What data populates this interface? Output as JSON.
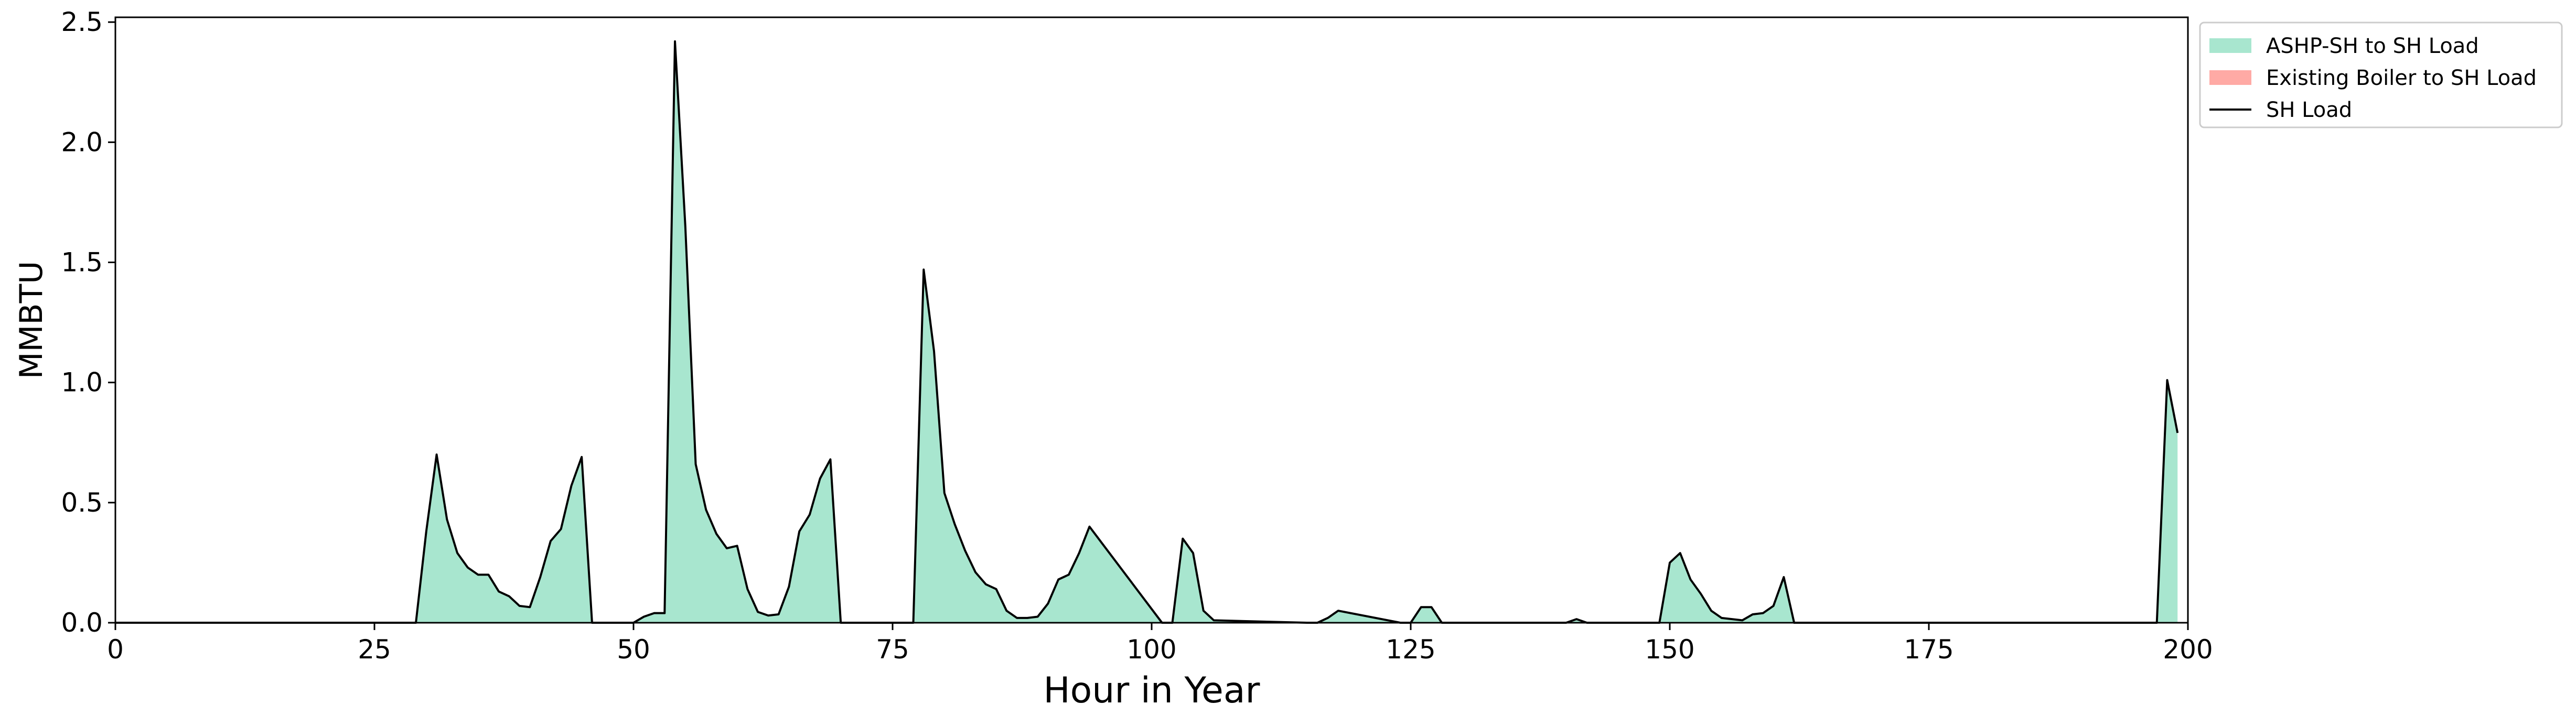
{
  "chart_data": {
    "type": "area",
    "xlabel": "Hour in Year",
    "ylabel": "MMBTU",
    "xlim": [
      0,
      200
    ],
    "ylim": [
      0,
      2.52
    ],
    "xticks": [
      0,
      25,
      50,
      75,
      100,
      125,
      150,
      175,
      200
    ],
    "xtick_labels": [
      "0",
      "25",
      "50",
      "75",
      "100",
      "125",
      "150",
      "175",
      "200"
    ],
    "yticks": [
      0,
      0.5,
      1.0,
      1.5,
      2.0,
      2.5
    ],
    "ytick_labels": [
      "0.0",
      "0.5",
      "1.0",
      "1.5",
      "2.0",
      "2.5"
    ],
    "grid": false,
    "legend_position": "outside upper right",
    "x": [
      0,
      29,
      30,
      31,
      32,
      33,
      34,
      35,
      36,
      37,
      38,
      39,
      40,
      41,
      42,
      43,
      44,
      45,
      46,
      47,
      50,
      51,
      52,
      53,
      54,
      55,
      56,
      57,
      58,
      59,
      60,
      61,
      62,
      63,
      64,
      65,
      66,
      67,
      68,
      69,
      70,
      71,
      77,
      78,
      79,
      80,
      81,
      82,
      83,
      84,
      85,
      86,
      87,
      88,
      89,
      90,
      91,
      92,
      93,
      94,
      101,
      102,
      103,
      104,
      105,
      106,
      115,
      116,
      117,
      118,
      124,
      125,
      126,
      127,
      128,
      140,
      141,
      142,
      149,
      150,
      151,
      152,
      153,
      154,
      155,
      156,
      157,
      158,
      159,
      160,
      161,
      162,
      197,
      198,
      199
    ],
    "series": [
      {
        "name": "ASHP-SH to SH Load",
        "color": "#a8e6cf",
        "kind": "fill",
        "values": [
          0,
          0,
          0.38,
          0.7,
          0.43,
          0.29,
          0.23,
          0.2,
          0.2,
          0.13,
          0.11,
          0.07,
          0.065,
          0.19,
          0.34,
          0.39,
          0.57,
          0.69,
          0,
          0,
          0,
          0.025,
          0.04,
          0.04,
          2.42,
          1.65,
          0.66,
          0.47,
          0.37,
          0.31,
          0.32,
          0.14,
          0.045,
          0.03,
          0.035,
          0.15,
          0.38,
          0.45,
          0.6,
          0.68,
          0,
          0,
          0,
          1.47,
          1.13,
          0.54,
          0.41,
          0.3,
          0.21,
          0.16,
          0.14,
          0.05,
          0.02,
          0.02,
          0.025,
          0.08,
          0.18,
          0.2,
          0.29,
          0.4,
          0,
          0,
          0.35,
          0.29,
          0.05,
          0.01,
          0,
          0,
          0.02,
          0.05,
          0,
          0,
          0.065,
          0.065,
          0,
          0,
          0.015,
          0,
          0,
          0.25,
          0.29,
          0.18,
          0.12,
          0.05,
          0.02,
          0.015,
          0.01,
          0.035,
          0.04,
          0.07,
          0.19,
          0,
          0,
          1.01,
          0.79
        ]
      },
      {
        "name": "Existing Boiler to SH Load",
        "color": "#ffaaa5",
        "kind": "fill",
        "values": [
          0,
          0,
          0,
          0,
          0,
          0,
          0,
          0,
          0,
          0,
          0,
          0,
          0,
          0,
          0,
          0,
          0,
          0,
          0,
          0,
          0,
          0,
          0,
          0,
          0,
          0,
          0,
          0,
          0,
          0,
          0,
          0,
          0,
          0,
          0,
          0,
          0,
          0,
          0,
          0,
          0,
          0,
          0,
          0,
          0,
          0,
          0,
          0,
          0,
          0,
          0,
          0,
          0,
          0,
          0,
          0,
          0,
          0,
          0,
          0,
          0,
          0,
          0,
          0,
          0,
          0,
          0,
          0,
          0,
          0,
          0,
          0,
          0,
          0,
          0,
          0,
          0,
          0,
          0,
          0,
          0,
          0,
          0,
          0,
          0,
          0,
          0,
          0,
          0,
          0,
          0,
          0,
          0,
          0,
          0
        ]
      },
      {
        "name": "SH Load",
        "color": "#000000",
        "kind": "line",
        "values": [
          0,
          0,
          0.38,
          0.7,
          0.43,
          0.29,
          0.23,
          0.2,
          0.2,
          0.13,
          0.11,
          0.07,
          0.065,
          0.19,
          0.34,
          0.39,
          0.57,
          0.69,
          0,
          0,
          0,
          0.025,
          0.04,
          0.04,
          2.42,
          1.65,
          0.66,
          0.47,
          0.37,
          0.31,
          0.32,
          0.14,
          0.045,
          0.03,
          0.035,
          0.15,
          0.38,
          0.45,
          0.6,
          0.68,
          0,
          0,
          0,
          1.47,
          1.13,
          0.54,
          0.41,
          0.3,
          0.21,
          0.16,
          0.14,
          0.05,
          0.02,
          0.02,
          0.025,
          0.08,
          0.18,
          0.2,
          0.29,
          0.4,
          0,
          0,
          0.35,
          0.29,
          0.05,
          0.01,
          0,
          0,
          0.02,
          0.05,
          0,
          0,
          0.065,
          0.065,
          0,
          0,
          0.015,
          0,
          0,
          0.25,
          0.29,
          0.18,
          0.12,
          0.05,
          0.02,
          0.015,
          0.01,
          0.035,
          0.04,
          0.07,
          0.19,
          0,
          0,
          1.01,
          0.79
        ]
      }
    ]
  }
}
